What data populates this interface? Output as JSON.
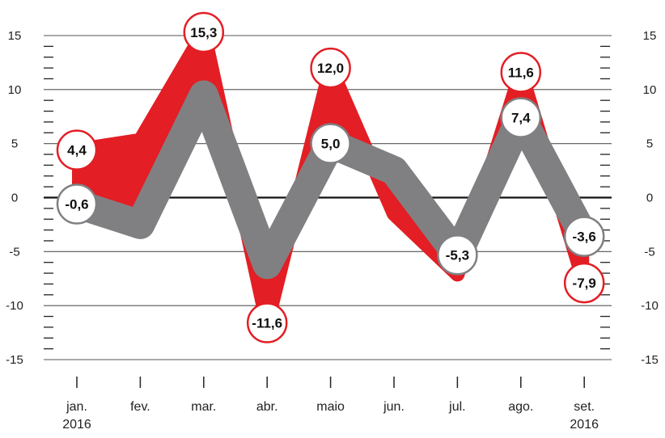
{
  "chart_data": {
    "type": "line",
    "title": "",
    "xlabel": "",
    "ylabel": "",
    "ylim": [
      -15,
      15
    ],
    "y_ticks": [
      15,
      10,
      5,
      0,
      -5,
      -10,
      -15
    ],
    "grid": true,
    "categories": [
      "jan.",
      "fev.",
      "mar.",
      "abr.",
      "maio",
      "jun.",
      "jul.",
      "ago.",
      "set."
    ],
    "category_sublabels": [
      "2016",
      "",
      "",
      "",
      "",
      "",
      "",
      "",
      "2016"
    ],
    "series": [
      {
        "color": "#e31e24",
        "values": [
          4.4,
          5.3,
          15.3,
          -11.6,
          12.0,
          -1.5,
          -7.1,
          11.6,
          -7.9
        ],
        "labels": [
          "4,4",
          "",
          "15,3",
          "-11,6",
          "12,0",
          "",
          "",
          "11,6",
          "-7,9"
        ]
      },
      {
        "color": "#808083",
        "values": [
          -0.6,
          -2.5,
          9.5,
          -6.2,
          5.0,
          2.5,
          -5.3,
          7.4,
          -3.6
        ],
        "labels": [
          "-0,6",
          "",
          "",
          "",
          "5,0",
          "",
          "-5,3",
          "7,4",
          "-3,6"
        ]
      }
    ]
  }
}
